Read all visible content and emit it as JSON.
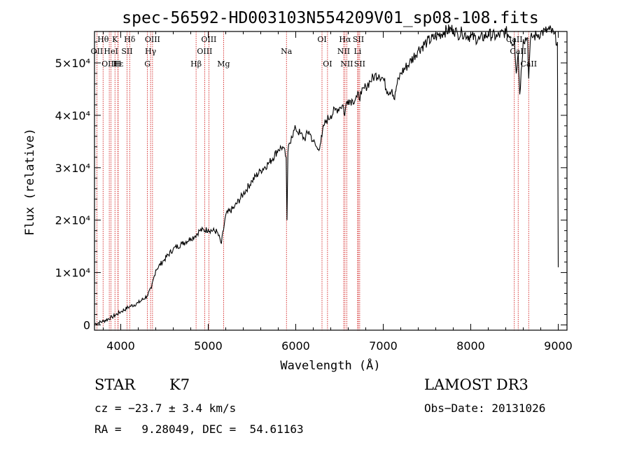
{
  "chart_data": {
    "type": "line",
    "title": "spec-56592-HD003103N554209V01_sp08-108.fits",
    "xlabel": "Wavelength (Å)",
    "ylabel": "Flux (relative)",
    "xlim": [
      3700,
      9100
    ],
    "ylim": [
      -1000,
      56000
    ],
    "x_ticks": [
      4000,
      5000,
      6000,
      7000,
      8000,
      9000
    ],
    "x_tick_labels": [
      "4000",
      "5000",
      "6000",
      "7000",
      "8000",
      "9000"
    ],
    "y_ticks": [
      0,
      10000,
      20000,
      30000,
      40000,
      50000
    ],
    "y_tick_labels": [
      "0",
      "1×10⁴",
      "2×10⁴",
      "3×10⁴",
      "4×10⁴",
      "5×10⁴"
    ],
    "series": [
      {
        "name": "spectrum",
        "x": [
          3700,
          3800,
          3900,
          4000,
          4100,
          4200,
          4300,
          4350,
          4400,
          4500,
          4600,
          4700,
          4800,
          4850,
          4900,
          5000,
          5100,
          5150,
          5200,
          5300,
          5400,
          5500,
          5600,
          5700,
          5800,
          5850,
          5890,
          5900,
          5910,
          5950,
          6000,
          6050,
          6100,
          6150,
          6200,
          6250,
          6280,
          6300,
          6320,
          6350,
          6400,
          6450,
          6500,
          6540,
          6560,
          6580,
          6600,
          6650,
          6700,
          6750,
          6800,
          6850,
          6900,
          6950,
          7000,
          7050,
          7100,
          7130,
          7150,
          7200,
          7300,
          7400,
          7500,
          7600,
          7700,
          7800,
          7850,
          7900,
          8000,
          8100,
          8200,
          8300,
          8400,
          8450,
          8480,
          8500,
          8520,
          8542,
          8560,
          8600,
          8650,
          8662,
          8680,
          8700,
          8750,
          8800,
          8850,
          8900,
          8950,
          8990,
          9000
        ],
        "y": [
          200,
          700,
          1500,
          2500,
          3500,
          4200,
          5500,
          7000,
          10500,
          12500,
          14500,
          15500,
          16500,
          17000,
          18000,
          18200,
          17800,
          15500,
          21000,
          22500,
          25000,
          27500,
          29500,
          31000,
          33500,
          34000,
          32000,
          20000,
          33000,
          36000,
          37500,
          36500,
          35500,
          37000,
          35000,
          33500,
          34500,
          36000,
          38000,
          39000,
          40000,
          41000,
          41500,
          42000,
          40000,
          42500,
          43000,
          42800,
          43500,
          44000,
          45500,
          46500,
          47500,
          47800,
          47000,
          44500,
          45000,
          43000,
          45500,
          48000,
          50000,
          52500,
          54000,
          55000,
          56000,
          56500,
          55500,
          55800,
          55000,
          54500,
          55500,
          55000,
          56000,
          55000,
          53500,
          54800,
          48000,
          52000,
          44000,
          54500,
          54800,
          47000,
          54000,
          55000,
          55200,
          55800,
          56000,
          56300,
          55500,
          54000,
          11000
        ]
      }
    ],
    "line_markers": [
      {
        "name": "Hθ",
        "wavelength": 3798,
        "row": 1
      },
      {
        "name": "OII",
        "wavelength": 3727,
        "row": 2
      },
      {
        "name": "OIII",
        "wavelength": 3869,
        "row": 3
      },
      {
        "name": "HeI",
        "wavelength": 3889,
        "row": 2
      },
      {
        "name": "Hε",
        "wavelength": 3970,
        "row": 3
      },
      {
        "name": "K",
        "wavelength": 3934,
        "row": 1
      },
      {
        "name": "H",
        "wavelength": 3968,
        "row": 3
      },
      {
        "name": "SII",
        "wavelength": 4072,
        "row": 2
      },
      {
        "name": "Hδ",
        "wavelength": 4102,
        "row": 1
      },
      {
        "name": "OIII",
        "wavelength": 4363,
        "row": 1
      },
      {
        "name": "Hγ",
        "wavelength": 4341,
        "row": 2
      },
      {
        "name": "G",
        "wavelength": 4305,
        "row": 3
      },
      {
        "name": "Hβ",
        "wavelength": 4861,
        "row": 3
      },
      {
        "name": "OIII",
        "wavelength": 4959,
        "row": 2
      },
      {
        "name": "OIII",
        "wavelength": 5007,
        "row": 1
      },
      {
        "name": "Mg",
        "wavelength": 5175,
        "row": 3
      },
      {
        "name": "Na",
        "wavelength": 5894,
        "row": 2
      },
      {
        "name": "OI",
        "wavelength": 6300,
        "row": 1
      },
      {
        "name": "OI",
        "wavelength": 6363,
        "row": 3
      },
      {
        "name": "NII",
        "wavelength": 6548,
        "row": 2
      },
      {
        "name": "Hα",
        "wavelength": 6563,
        "row": 1
      },
      {
        "name": "NII",
        "wavelength": 6583,
        "row": 3
      },
      {
        "name": "SII",
        "wavelength": 6716,
        "row": 1
      },
      {
        "name": "Li",
        "wavelength": 6707,
        "row": 2
      },
      {
        "name": "SII",
        "wavelength": 6731,
        "row": 3
      },
      {
        "name": "CaII",
        "wavelength": 8498,
        "row": 1
      },
      {
        "name": "CaII",
        "wavelength": 8542,
        "row": 2
      },
      {
        "name": "CaII",
        "wavelength": 8662,
        "row": 3
      }
    ],
    "grid": false,
    "legend": "none"
  },
  "info": {
    "object_class": "STAR",
    "subclass": "K7",
    "survey": "LAMOST DR3",
    "cz": "cz = −23.7 ± 3.4 km/s",
    "obs_date": "Obs−Date: 20131026",
    "radec": "RA =   9.28049, DEC =  54.61163"
  },
  "colors": {
    "spectrum": "#000000",
    "marker": "#cc0000"
  }
}
